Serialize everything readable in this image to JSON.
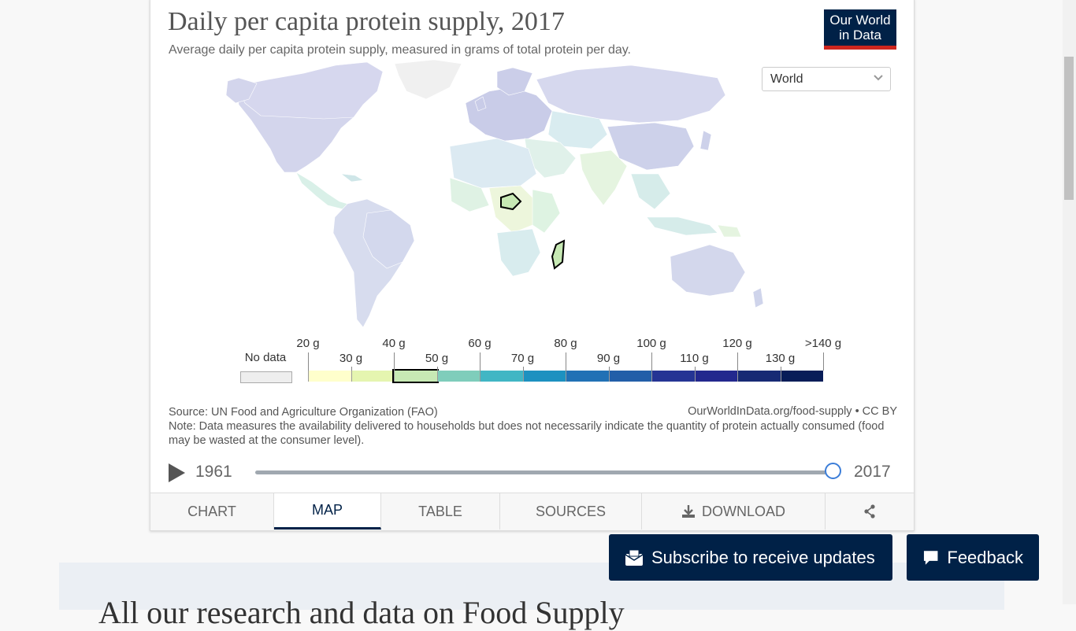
{
  "chart": {
    "title": "Daily per capita protein supply, 2017",
    "subtitle": "Average daily per capita protein supply, measured in grams of total protein per day.",
    "logo_line1": "Our World",
    "logo_line2": "in Data",
    "entity_select": "World"
  },
  "legend": {
    "no_data": "No data",
    "top_labels": [
      "20 g",
      "40 g",
      "60 g",
      "80 g",
      "100 g",
      "120 g",
      ">140 g"
    ],
    "bottom_labels": [
      "30 g",
      "50 g",
      "70 g",
      "90 g",
      "110 g",
      "130 g"
    ],
    "bin_colors": [
      "#ffffcc",
      "#e5f5b0",
      "#c7e9b4",
      "#7fcdbb",
      "#41b6c4",
      "#1d91c0",
      "#2171b5",
      "#225ea8",
      "#253494",
      "#23288e",
      "#172a74",
      "#081d58"
    ],
    "highlighted_bin_index": 2
  },
  "footer": {
    "source": "Source: UN Food and Agriculture Organization (FAO)",
    "license": "OurWorldInData.org/food-supply • CC BY",
    "note": "Note: Data measures the availability delivered to households but does not necessarily indicate the quantity of protein actually consumed (food may be wasted at the consumer level)."
  },
  "timeline": {
    "start_year": "1961",
    "end_year": "2017",
    "selected_fraction": 1.0
  },
  "tabs": {
    "chart": "CHART",
    "map": "MAP",
    "table": "TABLE",
    "sources": "SOURCES",
    "download": "DOWNLOAD"
  },
  "buttons": {
    "subscribe": "Subscribe to receive updates",
    "feedback": "Feedback"
  },
  "page": {
    "next_section_heading": "All our research and data on Food Supply"
  },
  "colors": {
    "brand": "#002147",
    "accent_red": "#ce261e",
    "slider": "#3b7dd8"
  }
}
